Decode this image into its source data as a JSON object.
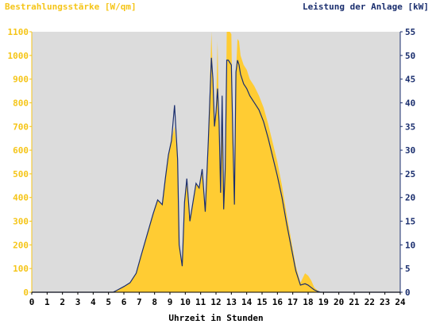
{
  "chart_data": {
    "type": "area",
    "left_axis_title": "Bestrahlungsstärke [W/qm]",
    "right_axis_title": "Leistung der Anlage [kW]",
    "xlabel": "Uhrzeit in Stunden",
    "x_ticks": [
      "0",
      "1",
      "2",
      "3",
      "4",
      "5",
      "6",
      "7",
      "8",
      "9",
      "10",
      "11",
      "12",
      "13",
      "14",
      "15",
      "16",
      "17",
      "18",
      "19",
      "20",
      "21",
      "22",
      "23",
      "24"
    ],
    "y_left_ticks": [
      "0",
      "100",
      "200",
      "300",
      "400",
      "500",
      "600",
      "700",
      "800",
      "900",
      "1000",
      "1100"
    ],
    "y_right_ticks": [
      "0",
      "5",
      "10",
      "15",
      "20",
      "25",
      "30",
      "35",
      "40",
      "45",
      "50",
      "55"
    ],
    "xlim": [
      0,
      24
    ],
    "ylim_left": [
      0,
      1100
    ],
    "ylim_right": [
      0,
      55
    ],
    "grid": false,
    "series": [
      {
        "name": "Bestrahlungsstärke [W/qm]",
        "axis": "left",
        "color": "#ffcc33",
        "style": "area",
        "x": [
          0,
          5.3,
          5.6,
          6.0,
          6.4,
          6.8,
          7.1,
          7.5,
          7.9,
          8.2,
          8.5,
          8.7,
          8.9,
          9.1,
          9.3,
          9.5,
          9.6,
          9.8,
          9.95,
          10.1,
          10.3,
          10.5,
          10.7,
          10.9,
          11.1,
          11.3,
          11.5,
          11.7,
          11.8,
          11.9,
          12.0,
          12.1,
          12.2,
          12.3,
          12.4,
          12.5,
          12.6,
          12.7,
          12.8,
          12.9,
          13.0,
          13.1,
          13.2,
          13.3,
          13.4,
          13.5,
          13.6,
          13.8,
          14.0,
          14.2,
          14.5,
          14.8,
          15.1,
          15.4,
          15.7,
          16.0,
          16.3,
          16.6,
          16.9,
          17.2,
          17.5,
          17.8,
          18.0,
          18.2,
          18.4,
          18.6,
          18.8,
          19.0,
          19.3,
          19.6,
          20.0,
          24
        ],
        "y": [
          0,
          0,
          10,
          25,
          40,
          80,
          150,
          240,
          330,
          390,
          370,
          480,
          580,
          640,
          700,
          560,
          200,
          110,
          380,
          480,
          300,
          380,
          460,
          440,
          520,
          340,
          640,
          1100,
          900,
          700,
          760,
          1060,
          720,
          420,
          830,
          350,
          520,
          1100,
          1100,
          1100,
          1090,
          650,
          370,
          930,
          1070,
          1060,
          1000,
          960,
          940,
          900,
          870,
          830,
          780,
          710,
          630,
          550,
          450,
          330,
          220,
          110,
          40,
          80,
          70,
          50,
          20,
          8,
          0,
          0,
          0,
          0,
          0,
          0
        ]
      },
      {
        "name": "Leistung der Anlage [kW]",
        "axis": "right",
        "color": "#1a2e6e",
        "style": "line",
        "x": [
          0,
          5.3,
          5.6,
          6.0,
          6.4,
          6.8,
          7.1,
          7.5,
          7.9,
          8.2,
          8.5,
          8.7,
          8.9,
          9.1,
          9.3,
          9.5,
          9.6,
          9.8,
          9.95,
          10.1,
          10.3,
          10.5,
          10.7,
          10.9,
          11.1,
          11.3,
          11.5,
          11.7,
          11.8,
          11.9,
          12.0,
          12.1,
          12.2,
          12.3,
          12.4,
          12.5,
          12.6,
          12.7,
          12.8,
          12.9,
          13.0,
          13.1,
          13.2,
          13.3,
          13.4,
          13.5,
          13.6,
          13.8,
          14.0,
          14.2,
          14.5,
          14.8,
          15.1,
          15.4,
          15.7,
          16.0,
          16.3,
          16.6,
          16.9,
          17.2,
          17.5,
          17.8,
          18.0,
          18.2,
          18.4,
          18.6,
          18.8,
          19.0,
          19.3,
          19.6,
          20.0,
          24
        ],
        "y": [
          0,
          0,
          0.5,
          1.2,
          2,
          4,
          7.5,
          12,
          16.5,
          19.5,
          18.5,
          24,
          29,
          32,
          39.5,
          28,
          10,
          5.5,
          19,
          24,
          15,
          19,
          23,
          22,
          26,
          17,
          32,
          49.5,
          45,
          35,
          38,
          43,
          36,
          21,
          41.5,
          17.5,
          26,
          49,
          49,
          48.5,
          48,
          32.5,
          18.5,
          46.5,
          49,
          48,
          46,
          44,
          43,
          41.5,
          40,
          38.5,
          36,
          32.5,
          28.5,
          24.5,
          20,
          14.5,
          9.5,
          4.5,
          1.5,
          1.8,
          1.5,
          1,
          0.5,
          0.2,
          0,
          0,
          0,
          0,
          0,
          0
        ]
      }
    ]
  }
}
